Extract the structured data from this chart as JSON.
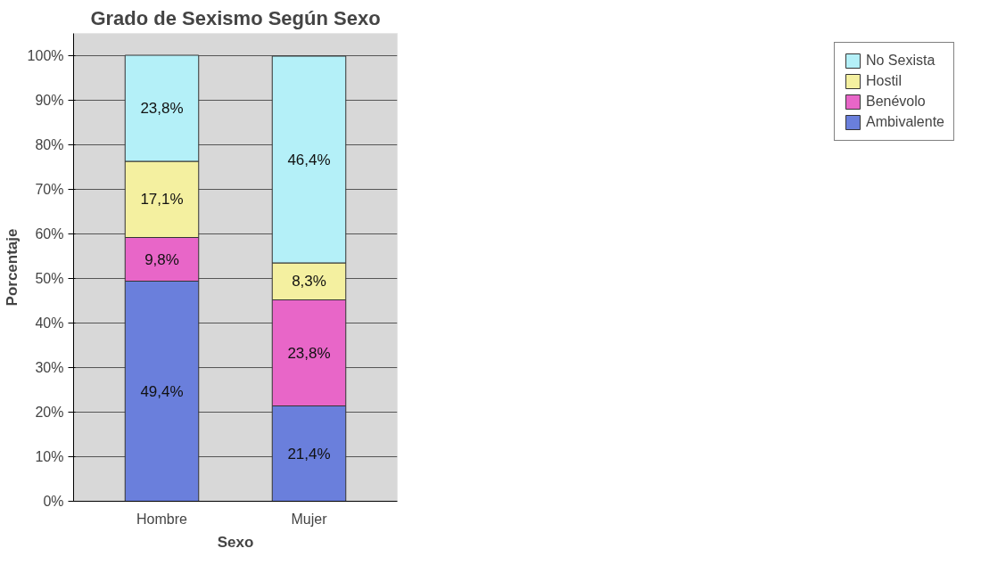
{
  "chart_data": {
    "type": "bar",
    "stacked": true,
    "title": "Grado de Sexismo Según Sexo",
    "xlabel": "Sexo",
    "ylabel": "Porcentaje",
    "categories": [
      "Hombre",
      "Mujer"
    ],
    "series": [
      {
        "name": "Ambivalente",
        "color": "#6a7fdc",
        "values": [
          49.4,
          21.4
        ],
        "value_labels": [
          "49,4%",
          "21,4%"
        ]
      },
      {
        "name": "Benévolo",
        "color": "#e866c8",
        "values": [
          9.8,
          23.8
        ],
        "value_labels": [
          "9,8%",
          "23,8%"
        ]
      },
      {
        "name": "Hostil",
        "color": "#f4f0a0",
        "values": [
          17.1,
          8.3
        ],
        "value_labels": [
          "17,1%",
          "8,3%"
        ]
      },
      {
        "name": "No Sexista",
        "color": "#b4f0f8",
        "values": [
          23.8,
          46.4
        ],
        "value_labels": [
          "23,8%",
          "46,4%"
        ]
      }
    ],
    "ylim": [
      0,
      105
    ],
    "yticks": [
      {
        "value": 0,
        "label": "0%"
      },
      {
        "value": 10,
        "label": "10%"
      },
      {
        "value": 20,
        "label": "20%"
      },
      {
        "value": 30,
        "label": "30%"
      },
      {
        "value": 40,
        "label": "40%"
      },
      {
        "value": 50,
        "label": "50%"
      },
      {
        "value": 60,
        "label": "60%"
      },
      {
        "value": 70,
        "label": "70%"
      },
      {
        "value": 80,
        "label": "80%"
      },
      {
        "value": 90,
        "label": "90%"
      },
      {
        "value": 100,
        "label": "100%"
      }
    ],
    "grid": "y",
    "legend": "right"
  }
}
